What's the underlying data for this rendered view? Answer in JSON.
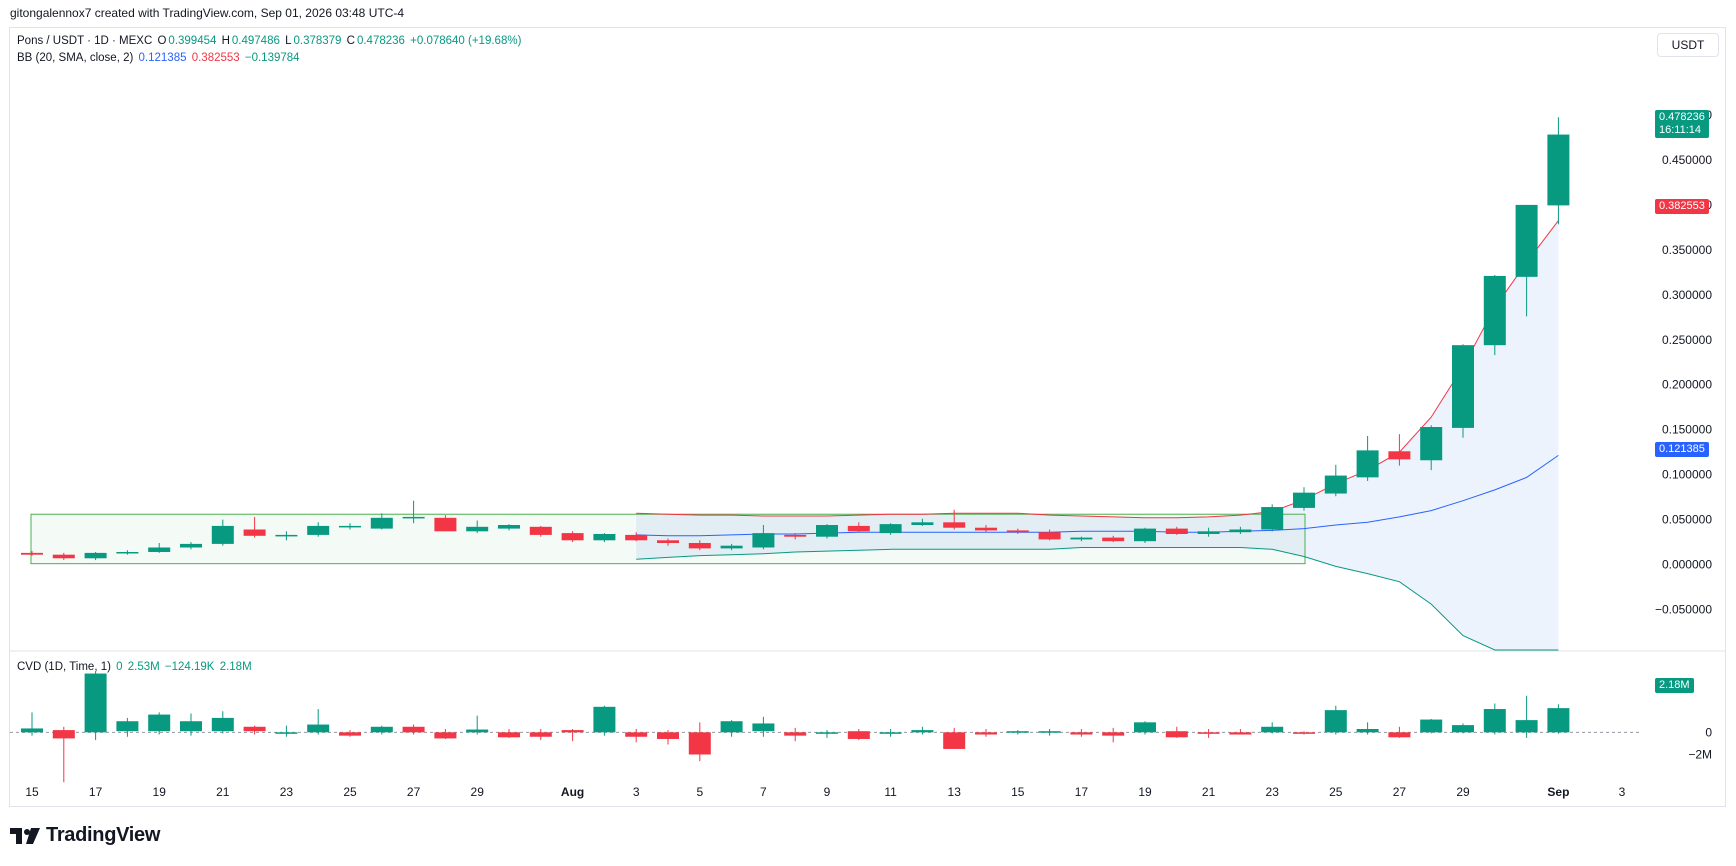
{
  "header": {
    "credit": "gitongalennox7 created with TradingView.com, Sep 01, 2026 03:48 UTC-4"
  },
  "currency_button": "USDT",
  "legend": {
    "symbol": "Pons / USDT · 1D · MEXC",
    "o_label": "O",
    "o_value": "0.399454",
    "h_label": "H",
    "h_value": "0.497486",
    "l_label": "L",
    "l_value": "0.378379",
    "c_label": "C",
    "c_value": "0.478236",
    "change": "+0.078640 (+19.68%)",
    "bb_label": "BB (20, SMA, close, 2)",
    "bb_basis": "0.121385",
    "bb_upper": "0.382553",
    "bb_lower": "−0.139784",
    "cvd_label": "CVD (1D, Time, 1)",
    "cvd_v1": "0",
    "cvd_v2": "2.53M",
    "cvd_v3": "−124.19K",
    "cvd_v4": "2.18M"
  },
  "price_tags": {
    "last_price": "0.478236",
    "countdown": "16:11:14",
    "bb_upper": "0.382553",
    "bb_basis": "0.121385",
    "cvd_last": "2.18M"
  },
  "colors": {
    "up": "#089981",
    "down": "#f23645",
    "basis": "#2962ff",
    "upper_band": "#f23645",
    "lower_band": "#089981",
    "band_fill": "#eaf2fd",
    "box": "#4caf50"
  },
  "brand": {
    "name": "TradingView"
  },
  "chart_data": [
    {
      "type": "candlestick",
      "title": "Pons / USDT · 1D · MEXC",
      "ylim": [
        -0.095,
        0.52
      ],
      "y_ticks": [
        0.5,
        0.45,
        0.4,
        0.35,
        0.3,
        0.25,
        0.2,
        0.15,
        0.1,
        0.05,
        0.0,
        -0.05
      ],
      "y_tick_labels": [
        "0.500000",
        "0.450000",
        "0.400000",
        "0.350000",
        "0.300000",
        "0.250000",
        "0.200000",
        "0.150000",
        "0.100000",
        "0.050000",
        "0.000000",
        "−0.050000"
      ],
      "x_tick_labels": [
        "15",
        "17",
        "19",
        "21",
        "23",
        "25",
        "27",
        "29",
        "Aug",
        "3",
        "5",
        "7",
        "9",
        "11",
        "13",
        "15",
        "17",
        "19",
        "21",
        "23",
        "25",
        "27",
        "29",
        "Sep",
        "3"
      ],
      "x_tick_index": [
        0,
        2,
        4,
        6,
        8,
        10,
        12,
        14,
        17,
        19,
        21,
        23,
        25,
        27,
        29,
        31,
        33,
        35,
        37,
        39,
        41,
        43,
        45,
        48,
        50
      ],
      "candles": [
        {
          "o": 0.013,
          "h": 0.015,
          "l": 0.01,
          "c": 0.011
        },
        {
          "o": 0.011,
          "h": 0.013,
          "l": 0.005,
          "c": 0.007
        },
        {
          "o": 0.007,
          "h": 0.014,
          "l": 0.005,
          "c": 0.013
        },
        {
          "o": 0.013,
          "h": 0.016,
          "l": 0.011,
          "c": 0.014
        },
        {
          "o": 0.014,
          "h": 0.024,
          "l": 0.013,
          "c": 0.019
        },
        {
          "o": 0.019,
          "h": 0.025,
          "l": 0.017,
          "c": 0.023
        },
        {
          "o": 0.023,
          "h": 0.05,
          "l": 0.021,
          "c": 0.043
        },
        {
          "o": 0.039,
          "h": 0.053,
          "l": 0.03,
          "c": 0.032
        },
        {
          "o": 0.032,
          "h": 0.037,
          "l": 0.027,
          "c": 0.033
        },
        {
          "o": 0.033,
          "h": 0.047,
          "l": 0.031,
          "c": 0.043
        },
        {
          "o": 0.042,
          "h": 0.046,
          "l": 0.039,
          "c": 0.043
        },
        {
          "o": 0.04,
          "h": 0.057,
          "l": 0.039,
          "c": 0.052
        },
        {
          "o": 0.052,
          "h": 0.071,
          "l": 0.046,
          "c": 0.053
        },
        {
          "o": 0.052,
          "h": 0.055,
          "l": 0.037,
          "c": 0.037
        },
        {
          "o": 0.037,
          "h": 0.049,
          "l": 0.035,
          "c": 0.042
        },
        {
          "o": 0.04,
          "h": 0.045,
          "l": 0.038,
          "c": 0.044
        },
        {
          "o": 0.042,
          "h": 0.043,
          "l": 0.031,
          "c": 0.033
        },
        {
          "o": 0.035,
          "h": 0.037,
          "l": 0.025,
          "c": 0.027
        },
        {
          "o": 0.027,
          "h": 0.035,
          "l": 0.025,
          "c": 0.034
        },
        {
          "o": 0.033,
          "h": 0.036,
          "l": 0.026,
          "c": 0.027
        },
        {
          "o": 0.027,
          "h": 0.029,
          "l": 0.021,
          "c": 0.024
        },
        {
          "o": 0.024,
          "h": 0.027,
          "l": 0.016,
          "c": 0.018
        },
        {
          "o": 0.018,
          "h": 0.023,
          "l": 0.016,
          "c": 0.021
        },
        {
          "o": 0.019,
          "h": 0.044,
          "l": 0.017,
          "c": 0.035
        },
        {
          "o": 0.033,
          "h": 0.035,
          "l": 0.028,
          "c": 0.031
        },
        {
          "o": 0.031,
          "h": 0.045,
          "l": 0.029,
          "c": 0.044
        },
        {
          "o": 0.043,
          "h": 0.047,
          "l": 0.036,
          "c": 0.037
        },
        {
          "o": 0.035,
          "h": 0.046,
          "l": 0.033,
          "c": 0.045
        },
        {
          "o": 0.044,
          "h": 0.051,
          "l": 0.043,
          "c": 0.047
        },
        {
          "o": 0.047,
          "h": 0.061,
          "l": 0.039,
          "c": 0.041
        },
        {
          "o": 0.041,
          "h": 0.044,
          "l": 0.036,
          "c": 0.038
        },
        {
          "o": 0.038,
          "h": 0.04,
          "l": 0.034,
          "c": 0.036
        },
        {
          "o": 0.036,
          "h": 0.039,
          "l": 0.027,
          "c": 0.028
        },
        {
          "o": 0.028,
          "h": 0.031,
          "l": 0.026,
          "c": 0.03
        },
        {
          "o": 0.03,
          "h": 0.032,
          "l": 0.025,
          "c": 0.026
        },
        {
          "o": 0.026,
          "h": 0.041,
          "l": 0.024,
          "c": 0.04
        },
        {
          "o": 0.04,
          "h": 0.042,
          "l": 0.033,
          "c": 0.034
        },
        {
          "o": 0.034,
          "h": 0.041,
          "l": 0.031,
          "c": 0.037
        },
        {
          "o": 0.036,
          "h": 0.042,
          "l": 0.034,
          "c": 0.039
        },
        {
          "o": 0.039,
          "h": 0.067,
          "l": 0.037,
          "c": 0.064
        },
        {
          "o": 0.063,
          "h": 0.086,
          "l": 0.06,
          "c": 0.08
        },
        {
          "o": 0.079,
          "h": 0.111,
          "l": 0.076,
          "c": 0.099
        },
        {
          "o": 0.097,
          "h": 0.143,
          "l": 0.093,
          "c": 0.127
        },
        {
          "o": 0.126,
          "h": 0.145,
          "l": 0.11,
          "c": 0.117
        },
        {
          "o": 0.116,
          "h": 0.155,
          "l": 0.105,
          "c": 0.153
        },
        {
          "o": 0.152,
          "h": 0.245,
          "l": 0.141,
          "c": 0.244
        },
        {
          "o": 0.244,
          "h": 0.322,
          "l": 0.233,
          "c": 0.321
        },
        {
          "o": 0.32,
          "h": 0.4,
          "l": 0.276,
          "c": 0.4
        },
        {
          "o": 0.399454,
          "h": 0.497486,
          "l": 0.378379,
          "c": 0.478236
        }
      ],
      "bollinger": {
        "start_index": 19,
        "basis": [
          0.033,
          0.032,
          0.032,
          0.033,
          0.034,
          0.034,
          0.035,
          0.036,
          0.036,
          0.036,
          0.036,
          0.036,
          0.036,
          0.036,
          0.037,
          0.037,
          0.037,
          0.036,
          0.036,
          0.037,
          0.038,
          0.04,
          0.044,
          0.047,
          0.053,
          0.06,
          0.071,
          0.083,
          0.097,
          0.121385
        ],
        "upper": [
          0.057,
          0.056,
          0.055,
          0.055,
          0.054,
          0.054,
          0.054,
          0.055,
          0.056,
          0.056,
          0.057,
          0.057,
          0.057,
          0.055,
          0.054,
          0.053,
          0.052,
          0.052,
          0.053,
          0.055,
          0.059,
          0.072,
          0.09,
          0.105,
          0.125,
          0.164,
          0.22,
          0.286,
          0.336,
          0.382553
        ],
        "lower": [
          0.006,
          0.008,
          0.01,
          0.011,
          0.012,
          0.014,
          0.015,
          0.016,
          0.017,
          0.017,
          0.017,
          0.017,
          0.017,
          0.017,
          0.019,
          0.019,
          0.019,
          0.019,
          0.019,
          0.019,
          0.017,
          0.009,
          -0.002,
          -0.01,
          -0.019,
          -0.044,
          -0.079,
          -0.12,
          -0.14,
          -0.139784
        ]
      },
      "box": {
        "from_index": 0,
        "to_index": 40,
        "top": 0.056,
        "bottom": 0.001
      }
    },
    {
      "type": "bar",
      "title": "CVD (1D, Time, 1)",
      "ylim": [
        -4.3,
        5.8
      ],
      "y_ticks": [
        0,
        -2
      ],
      "y_tick_labels": [
        "0",
        "−2M"
      ],
      "bars": [
        {
          "o": 0,
          "h": 1.8,
          "l": -0.3,
          "c": 0.35
        },
        {
          "o": 0.2,
          "h": 0.5,
          "l": -4.5,
          "c": -0.55
        },
        {
          "o": 0,
          "h": 5.5,
          "l": -0.7,
          "c": 5.3
        },
        {
          "o": 0.1,
          "h": 1.3,
          "l": -0.4,
          "c": 1.0
        },
        {
          "o": 0.1,
          "h": 1.8,
          "l": -0.2,
          "c": 1.6
        },
        {
          "o": 0.1,
          "h": 1.7,
          "l": -0.3,
          "c": 1.0
        },
        {
          "o": 0.1,
          "h": 1.9,
          "l": -0.1,
          "c": 1.3
        },
        {
          "o": 0.5,
          "h": 0.6,
          "l": -0.2,
          "c": 0.1
        },
        {
          "o": 0,
          "h": 0.6,
          "l": -0.4,
          "c": 0
        },
        {
          "o": 0,
          "h": 2.1,
          "l": -0.2,
          "c": 0.7
        },
        {
          "o": 0,
          "h": 0.2,
          "l": -0.4,
          "c": -0.3
        },
        {
          "o": 0,
          "h": 0.6,
          "l": -0.2,
          "c": 0.5
        },
        {
          "o": 0.5,
          "h": 0.7,
          "l": -0.2,
          "c": 0
        },
        {
          "o": 0,
          "h": 0.3,
          "l": -0.6,
          "c": -0.55
        },
        {
          "o": 0,
          "h": 1.5,
          "l": -0.2,
          "c": 0.25
        },
        {
          "o": 0,
          "h": 0.3,
          "l": -0.5,
          "c": -0.45
        },
        {
          "o": 0,
          "h": 0.3,
          "l": -0.7,
          "c": -0.4
        },
        {
          "o": 0.2,
          "h": 0.3,
          "l": -0.8,
          "c": 0
        },
        {
          "o": 0,
          "h": 2.4,
          "l": -0.3,
          "c": 2.3
        },
        {
          "o": 0,
          "h": 0.3,
          "l": -0.9,
          "c": -0.4
        },
        {
          "o": 0,
          "h": 0.2,
          "l": -1.1,
          "c": -0.6
        },
        {
          "o": 0,
          "h": 0.9,
          "l": -2.6,
          "c": -2.0
        },
        {
          "o": 0,
          "h": 1.1,
          "l": -0.4,
          "c": 1.0
        },
        {
          "o": 0.1,
          "h": 1.4,
          "l": -0.4,
          "c": 0.8
        },
        {
          "o": 0,
          "h": 0.4,
          "l": -0.8,
          "c": -0.3
        },
        {
          "o": 0,
          "h": 0.2,
          "l": -0.5,
          "c": 0
        },
        {
          "o": 0.1,
          "h": 0.3,
          "l": -0.7,
          "c": -0.6
        },
        {
          "o": 0,
          "h": 0.3,
          "l": -0.4,
          "c": 0
        },
        {
          "o": 0,
          "h": 0.5,
          "l": -0.2,
          "c": 0.2
        },
        {
          "o": 0,
          "h": 0.4,
          "l": -1.5,
          "c": -1.5
        },
        {
          "o": 0,
          "h": 0.3,
          "l": -0.4,
          "c": -0.2
        },
        {
          "o": 0,
          "h": 0.2,
          "l": -0.2,
          "c": 0.1
        },
        {
          "o": 0,
          "h": 0.3,
          "l": -0.3,
          "c": 0.1
        },
        {
          "o": 0,
          "h": 0.3,
          "l": -0.4,
          "c": -0.2
        },
        {
          "o": 0,
          "h": 0.4,
          "l": -0.9,
          "c": -0.3
        },
        {
          "o": 0,
          "h": 1.0,
          "l": -0.2,
          "c": 0.9
        },
        {
          "o": 0.1,
          "h": 0.5,
          "l": -0.5,
          "c": -0.45
        },
        {
          "o": 0,
          "h": 0.3,
          "l": -0.5,
          "c": -0.1
        },
        {
          "o": 0,
          "h": 0.3,
          "l": -0.2,
          "c": -0.2
        },
        {
          "o": 0,
          "h": 0.9,
          "l": -0.1,
          "c": 0.5
        },
        {
          "o": 0,
          "h": 0.1,
          "l": -0.2,
          "c": -0.05
        },
        {
          "o": 0,
          "h": 2.4,
          "l": -0.2,
          "c": 2.0
        },
        {
          "o": 0,
          "h": 0.9,
          "l": -0.2,
          "c": 0.3
        },
        {
          "o": 0,
          "h": 0.5,
          "l": -0.5,
          "c": -0.45
        },
        {
          "o": 0,
          "h": 1.2,
          "l": -0.1,
          "c": 1.15
        },
        {
          "o": 0,
          "h": 0.8,
          "l": -0.1,
          "c": 0.65
        },
        {
          "o": 0,
          "h": 2.6,
          "l": -0.2,
          "c": 2.1
        },
        {
          "o": 0,
          "h": 3.3,
          "l": -0.5,
          "c": 1.1
        },
        {
          "o": 0,
          "h": 2.53,
          "l": -0.124,
          "c": 2.18
        }
      ]
    }
  ]
}
